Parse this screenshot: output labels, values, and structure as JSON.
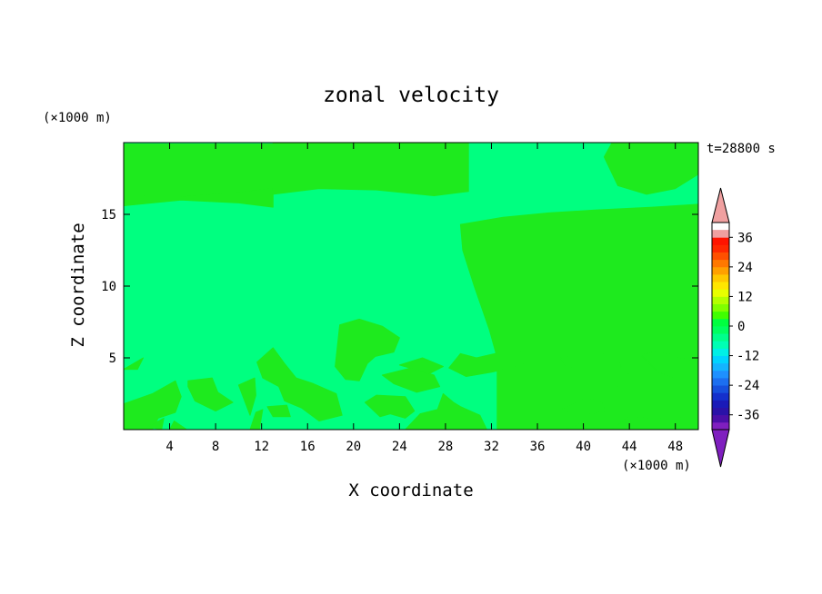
{
  "chart_data": {
    "type": "heatmap",
    "title": "zonal velocity",
    "xlabel": "X coordinate",
    "ylabel": "Z coordinate",
    "x_unit": "(×1000 m)",
    "y_unit": "(×1000 m)",
    "time_label": "t=28800 s",
    "xlim": [
      0,
      50
    ],
    "ylim": [
      0,
      20
    ],
    "x_ticks": [
      4,
      8,
      12,
      16,
      20,
      24,
      28,
      32,
      36,
      40,
      44,
      48
    ],
    "y_ticks": [
      5,
      10,
      15
    ],
    "colorbar": {
      "levels": [
        -42,
        -39,
        -36,
        -33,
        -30,
        -27,
        -24,
        -21,
        -18,
        -15,
        -12,
        -9,
        -6,
        -3,
        0,
        3,
        6,
        9,
        12,
        15,
        18,
        21,
        24,
        27,
        30,
        33,
        36,
        39,
        42
      ],
      "tick_labels": [
        36,
        24,
        12,
        0,
        -12,
        -24,
        -36
      ],
      "colors": [
        "#7f1fbf",
        "#4b0fa8",
        "#2a12a8",
        "#1a1ab8",
        "#1430cc",
        "#1650dd",
        "#1c6ff0",
        "#1e90ff",
        "#14b4ff",
        "#00d4ff",
        "#00f0e6",
        "#00ffb4",
        "#00ff8c",
        "#00ff60",
        "#00ff40",
        "#40ff00",
        "#80ff00",
        "#b4ff00",
        "#e8ff00",
        "#ffe600",
        "#ffc800",
        "#ffa000",
        "#ff7800",
        "#ff5000",
        "#ff2800",
        "#ff1400",
        "#f0a0a0"
      ],
      "extend_low_color": "#7f1fbf",
      "extend_high_color": "#f0a0a0"
    },
    "field_colors": {
      "near_zero_negative": "#00ff80",
      "near_zero_positive": "#1eea1e"
    },
    "positive_regions": [
      [
        [
          0,
          15.6
        ],
        [
          5,
          16.2
        ],
        [
          10,
          16.5
        ],
        [
          13,
          16.8
        ],
        [
          13,
          19.9
        ],
        [
          0,
          19.9
        ]
      ],
      [
        [
          0,
          15.6
        ],
        [
          5,
          16.0
        ],
        [
          10,
          15.8
        ],
        [
          13,
          15.5
        ],
        [
          13,
          16.8
        ],
        [
          10,
          16.5
        ],
        [
          5,
          16.2
        ],
        [
          0,
          16.4
        ]
      ],
      [
        [
          13,
          16.4
        ],
        [
          17,
          16.8
        ],
        [
          22,
          16.7
        ],
        [
          27,
          16.3
        ],
        [
          30,
          16.6
        ],
        [
          30,
          20
        ],
        [
          13,
          20
        ]
      ],
      [
        [
          42.5,
          20
        ],
        [
          41.8,
          19
        ],
        [
          43,
          17
        ],
        [
          45.5,
          16.4
        ],
        [
          48,
          16.8
        ],
        [
          50,
          17.8
        ],
        [
          50,
          20
        ]
      ],
      [
        [
          29.3,
          14.3
        ],
        [
          33,
          14.8
        ],
        [
          37,
          15.1
        ],
        [
          41,
          15.3
        ],
        [
          46,
          15.5
        ],
        [
          50,
          15.7
        ],
        [
          50,
          0
        ],
        [
          32.5,
          0
        ],
        [
          32.5,
          5
        ],
        [
          31.8,
          7
        ],
        [
          30.5,
          10
        ],
        [
          29.5,
          12.5
        ]
      ],
      [
        [
          0,
          0
        ],
        [
          0,
          1.8
        ],
        [
          2.5,
          2.5
        ],
        [
          4.5,
          3.4
        ],
        [
          5,
          2.3
        ],
        [
          4.5,
          1.2
        ],
        [
          3,
          0.8
        ],
        [
          2.5,
          0
        ]
      ],
      [
        [
          0,
          4.2
        ],
        [
          1.7,
          5
        ],
        [
          1.2,
          4.2
        ]
      ],
      [
        [
          5.6,
          3.4
        ],
        [
          7.7,
          3.6
        ],
        [
          8.2,
          2.6
        ],
        [
          9.5,
          1.9
        ],
        [
          8,
          1.3
        ],
        [
          6.2,
          2
        ],
        [
          5.6,
          3
        ]
      ],
      [
        [
          10,
          3.1
        ],
        [
          11.4,
          3.6
        ],
        [
          11.5,
          2.4
        ],
        [
          11,
          1
        ]
      ],
      [
        [
          11,
          0
        ],
        [
          11.5,
          1.2
        ],
        [
          12.1,
          1.4
        ],
        [
          11.8,
          0
        ]
      ],
      [
        [
          11.6,
          4.7
        ],
        [
          13,
          5.7
        ],
        [
          14,
          4.6
        ],
        [
          15,
          3.6
        ],
        [
          16.5,
          3.2
        ],
        [
          18.5,
          2.5
        ],
        [
          19,
          1
        ],
        [
          17,
          0.6
        ],
        [
          15.5,
          1.5
        ],
        [
          14,
          2
        ],
        [
          13.5,
          3
        ],
        [
          12.1,
          3.6
        ]
      ],
      [
        [
          18.4,
          4.4
        ],
        [
          18.8,
          7.3
        ],
        [
          20.5,
          7.7
        ],
        [
          22.5,
          7.2
        ],
        [
          24,
          6.4
        ],
        [
          23.5,
          5.4
        ],
        [
          21.9,
          5.1
        ],
        [
          21.2,
          4.6
        ],
        [
          20.5,
          3.4
        ],
        [
          19.3,
          3.5
        ]
      ],
      [
        [
          21,
          1.9
        ],
        [
          22,
          2.4
        ],
        [
          24.5,
          2.3
        ],
        [
          25.3,
          1.3
        ],
        [
          24.5,
          0.8
        ],
        [
          23.2,
          1.1
        ],
        [
          22.3,
          0.9
        ]
      ],
      [
        [
          22.5,
          3.8
        ],
        [
          25,
          4.3
        ],
        [
          27,
          3.8
        ],
        [
          27.5,
          3.0
        ],
        [
          25.5,
          2.6
        ],
        [
          23.5,
          3.2
        ]
      ],
      [
        [
          24.5,
          0
        ],
        [
          25.8,
          1.1
        ],
        [
          27.3,
          1.4
        ],
        [
          27.8,
          2.5
        ],
        [
          28.7,
          1.9
        ],
        [
          29.3,
          1.6
        ],
        [
          31,
          1.0
        ],
        [
          31.6,
          0
        ]
      ],
      [
        [
          28.3,
          4.3
        ],
        [
          29.3,
          5.3
        ],
        [
          30.7,
          5.0
        ],
        [
          32.3,
          5.3
        ],
        [
          34.5,
          5.5
        ],
        [
          34.8,
          4.5
        ],
        [
          32,
          4.0
        ],
        [
          29.8,
          3.7
        ]
      ],
      [
        [
          24,
          4.5
        ],
        [
          26,
          5.0
        ],
        [
          27.8,
          4.4
        ],
        [
          26.6,
          3.9
        ]
      ],
      [
        [
          38,
          5
        ],
        [
          40,
          5.2
        ],
        [
          43,
          5.4
        ],
        [
          43.3,
          4.3
        ],
        [
          40.5,
          4.0
        ],
        [
          38.5,
          4.4
        ]
      ],
      [
        [
          43.3,
          4.5
        ],
        [
          44.3,
          5.2
        ],
        [
          44,
          3.8
        ]
      ],
      [
        [
          45,
          5.2
        ],
        [
          46.5,
          5.5
        ],
        [
          48.5,
          5
        ],
        [
          50,
          4.6
        ],
        [
          50,
          3.5
        ],
        [
          48,
          3.6
        ],
        [
          46.5,
          4
        ]
      ],
      [
        [
          43,
          3.0
        ],
        [
          44.5,
          3.1
        ],
        [
          45,
          2.1
        ],
        [
          43.8,
          2.2
        ]
      ],
      [
        [
          38,
          1.4
        ],
        [
          40,
          2.2
        ],
        [
          41.5,
          2.0
        ],
        [
          42,
          1.3
        ],
        [
          40,
          1.0
        ]
      ],
      [
        [
          38.5,
          0
        ],
        [
          40,
          0.5
        ],
        [
          41.5,
          0
        ]
      ],
      [
        [
          42.5,
          0
        ],
        [
          44,
          1.0
        ],
        [
          46,
          0.7
        ],
        [
          50,
          1.0
        ],
        [
          50,
          0
        ]
      ],
      [
        [
          4,
          0
        ],
        [
          4.4,
          0.6
        ],
        [
          5.5,
          0
        ]
      ],
      [
        [
          12.5,
          1.6
        ],
        [
          14.2,
          1.7
        ],
        [
          14.5,
          0.9
        ],
        [
          13,
          0.9
        ]
      ],
      [
        [
          2.1,
          0.2
        ],
        [
          3.5,
          0.8
        ],
        [
          3.3,
          0
        ]
      ]
    ]
  }
}
